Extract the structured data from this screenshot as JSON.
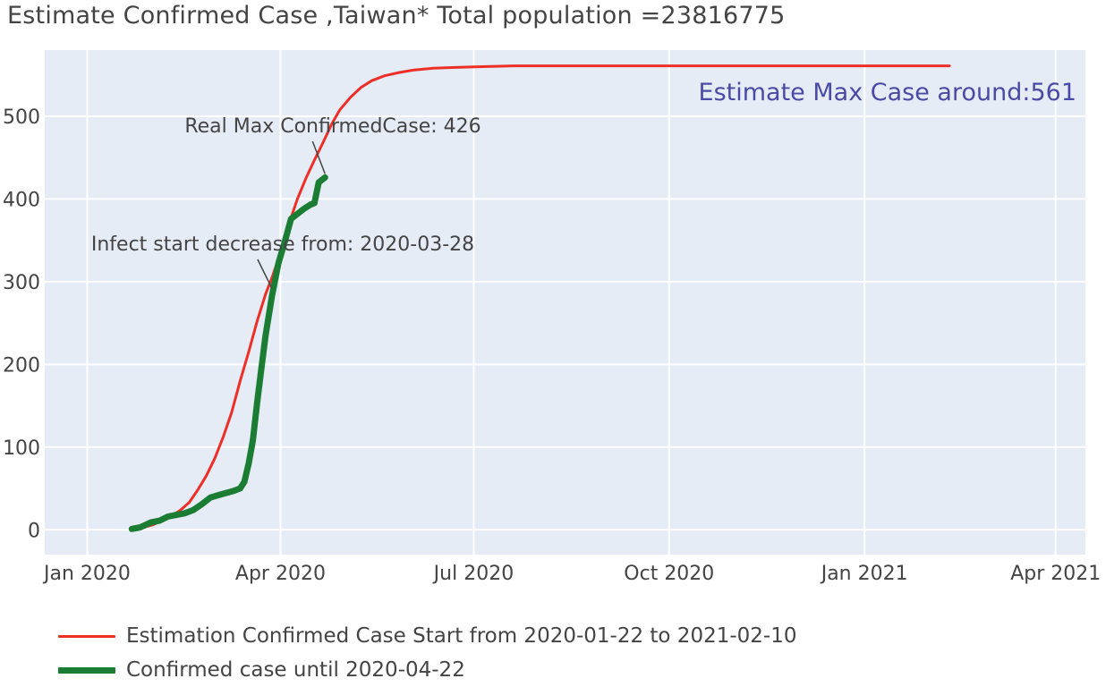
{
  "chart_data": {
    "type": "line",
    "title": "Estimate Confirmed Case ,Taiwan* Total population =23816775",
    "xlabel": "",
    "ylabel": "",
    "x_axis": {
      "type": "date",
      "range": [
        "2019-12-12",
        "2021-04-15"
      ],
      "ticks": [
        {
          "date": "2020-01-01",
          "label": "Jan 2020"
        },
        {
          "date": "2020-04-01",
          "label": "Apr 2020"
        },
        {
          "date": "2020-07-01",
          "label": "Jul 2020"
        },
        {
          "date": "2020-10-01",
          "label": "Oct 2020"
        },
        {
          "date": "2021-01-01",
          "label": "Jan 2021"
        },
        {
          "date": "2021-04-01",
          "label": "Apr 2021"
        }
      ]
    },
    "y_axis": {
      "range": [
        -30,
        580
      ],
      "ticks": [
        {
          "value": 0,
          "label": "0"
        },
        {
          "value": 100,
          "label": "100"
        },
        {
          "value": 200,
          "label": "200"
        },
        {
          "value": 300,
          "label": "300"
        },
        {
          "value": 400,
          "label": "400"
        },
        {
          "value": 500,
          "label": "500"
        }
      ]
    },
    "grid": true,
    "background": "#e5ecf6",
    "series": [
      {
        "name": "Estimation Confirmed Case Start from 2020-01-22 to 2021-02-10",
        "color": "#ee2f27",
        "width": 3,
        "x": [
          "2020-01-22",
          "2020-01-26",
          "2020-02-01",
          "2020-02-05",
          "2020-02-10",
          "2020-02-14",
          "2020-02-18",
          "2020-02-22",
          "2020-02-26",
          "2020-03-01",
          "2020-03-05",
          "2020-03-09",
          "2020-03-13",
          "2020-03-17",
          "2020-03-21",
          "2020-03-25",
          "2020-03-28",
          "2020-04-01",
          "2020-04-05",
          "2020-04-09",
          "2020-04-13",
          "2020-04-17",
          "2020-04-21",
          "2020-04-25",
          "2020-04-29",
          "2020-05-04",
          "2020-05-09",
          "2020-05-14",
          "2020-05-20",
          "2020-05-27",
          "2020-06-03",
          "2020-06-12",
          "2020-06-22",
          "2020-07-05",
          "2020-07-20",
          "2020-08-15",
          "2020-10-01",
          "2021-01-01",
          "2021-02-10"
        ],
        "y": [
          0,
          2,
          6,
          11,
          17,
          24,
          33,
          48,
          65,
          86,
          112,
          142,
          180,
          215,
          252,
          285,
          305,
          335,
          370,
          400,
          425,
          447,
          468,
          490,
          508,
          523,
          535,
          543,
          549,
          553,
          556,
          558,
          559,
          560,
          561,
          561,
          561,
          561,
          561
        ]
      },
      {
        "name": "Confirmed case until 2020-04-22",
        "color": "#1b7d33",
        "width": 7,
        "x": [
          "2020-01-22",
          "2020-01-26",
          "2020-01-31",
          "2020-02-04",
          "2020-02-08",
          "2020-02-12",
          "2020-02-16",
          "2020-02-20",
          "2020-02-24",
          "2020-02-28",
          "2020-03-03",
          "2020-03-07",
          "2020-03-10",
          "2020-03-13",
          "2020-03-15",
          "2020-03-17",
          "2020-03-19",
          "2020-03-21",
          "2020-03-23",
          "2020-03-25",
          "2020-03-28",
          "2020-03-31",
          "2020-04-03",
          "2020-04-06",
          "2020-04-09",
          "2020-04-12",
          "2020-04-15",
          "2020-04-17",
          "2020-04-19",
          "2020-04-22"
        ],
        "y": [
          1,
          3,
          9,
          11,
          16,
          18,
          20,
          24,
          31,
          39,
          42,
          45,
          47,
          50,
          58,
          80,
          108,
          153,
          195,
          235,
          283,
          322,
          348,
          376,
          382,
          388,
          393,
          395,
          420,
          426
        ]
      }
    ],
    "annotations": [
      {
        "text": "Real Max ConfirmedCase: 426",
        "date": "2020-04-22",
        "value": 426
      },
      {
        "text": "Infect start decrease from: 2020-03-28",
        "date": "2020-03-28",
        "value": 283
      },
      {
        "text": "Estimate Max Case around:561"
      }
    ],
    "legend_position": "bottom-left"
  }
}
